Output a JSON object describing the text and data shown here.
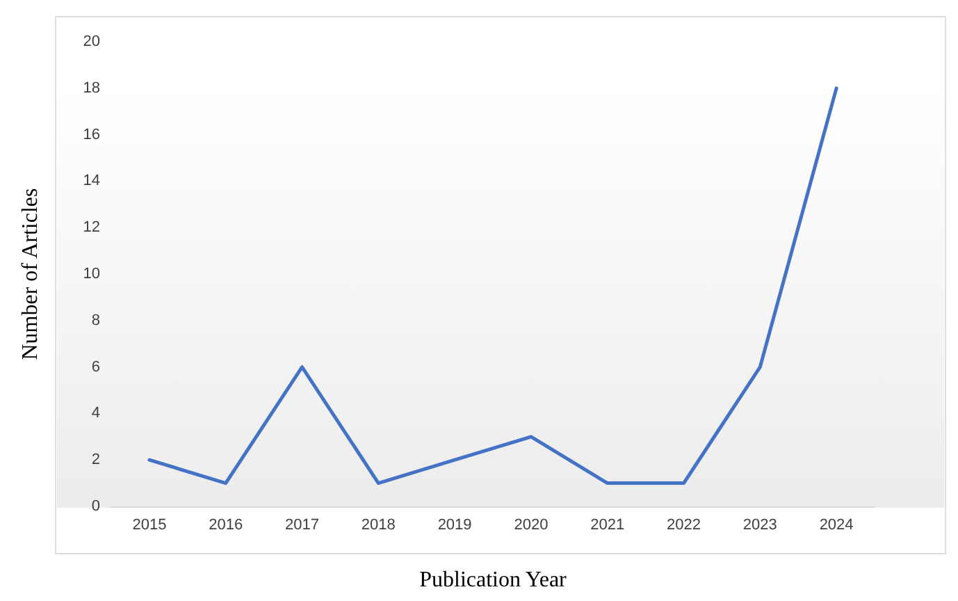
{
  "chart_data": {
    "type": "line",
    "xlabel": "Publication Year",
    "ylabel": "Number of Articles",
    "categories": [
      "2015",
      "2016",
      "2017",
      "2018",
      "2019",
      "2020",
      "2021",
      "2022",
      "2023",
      "2024"
    ],
    "series": [
      {
        "color": "#4472c4",
        "values": [
          2,
          1,
          6,
          1,
          2,
          3,
          1,
          1,
          6,
          18
        ]
      }
    ],
    "ylim": [
      0,
      20
    ],
    "yticks": [
      0,
      2,
      4,
      6,
      8,
      10,
      12,
      14,
      16,
      18,
      20
    ],
    "grid": false,
    "marker": "none",
    "line_style": "solid"
  }
}
